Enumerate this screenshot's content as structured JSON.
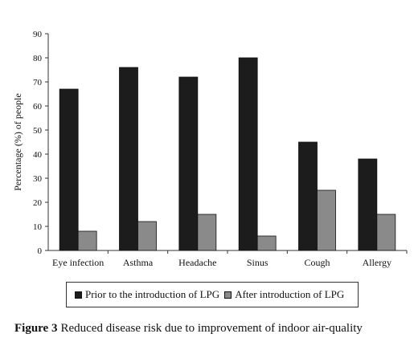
{
  "chart_data": {
    "type": "bar",
    "categories": [
      "Eye infection",
      "Asthma",
      "Headache",
      "Sinus",
      "Cough",
      "Allergy"
    ],
    "series": [
      {
        "name": "Prior to the introduction of  LPG",
        "color": "#1c1c1c",
        "values": [
          67,
          76,
          72,
          80,
          45,
          38
        ]
      },
      {
        "name": "After introduction of  LPG",
        "color": "#8a8a8a",
        "values": [
          8,
          12,
          15,
          6,
          25,
          15
        ]
      }
    ],
    "ylabel": "Percentage (%) of people",
    "ylim": [
      0,
      90
    ],
    "yticks": [
      0,
      10,
      20,
      30,
      40,
      50,
      60,
      70,
      80,
      90
    ],
    "grid": false,
    "legend_position": "bottom"
  },
  "caption": {
    "label": "Figure 3",
    "text": "Reduced disease risk due to improvement of indoor air-quality"
  }
}
